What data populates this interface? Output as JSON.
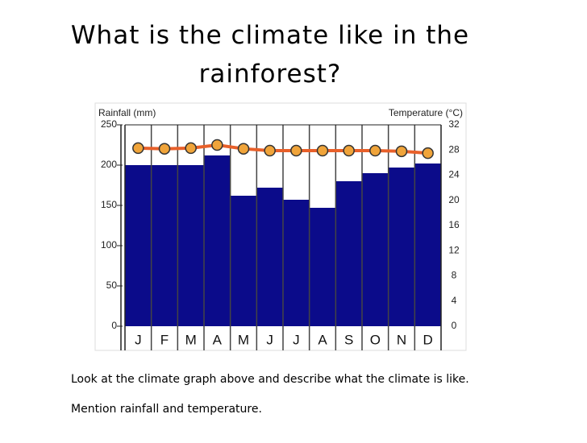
{
  "chart_data": {
    "type": "bar",
    "title": "What is the climate like in the rainforest?",
    "y_label": "Rainfall (mm)",
    "y2_label": "Temperature (°C)",
    "categories": [
      "J",
      "F",
      "M",
      "A",
      "M",
      "J",
      "J",
      "A",
      "S",
      "O",
      "N",
      "D"
    ],
    "series": [
      {
        "name": "Rainfall",
        "type": "bar",
        "color": "#0b0b8a",
        "values": [
          200,
          200,
          200,
          212,
          162,
          172,
          157,
          147,
          180,
          190,
          197,
          202
        ]
      },
      {
        "name": "Temperature",
        "type": "line",
        "axis": "y2",
        "color": "#e8602a",
        "values": [
          28.3,
          28.2,
          28.3,
          28.8,
          28.2,
          27.9,
          27.9,
          27.9,
          27.9,
          27.9,
          27.8,
          27.5
        ]
      }
    ],
    "ylim": [
      0,
      250
    ],
    "yticks": [
      0,
      50,
      100,
      150,
      200,
      250
    ],
    "y2lim": [
      0,
      32
    ],
    "y2ticks": [
      0,
      4,
      8,
      12,
      16,
      20,
      24,
      28,
      32
    ],
    "annotations": [
      "Look at the climate graph above and describe what the climate is like.",
      "Mention rainfall and temperature."
    ]
  }
}
